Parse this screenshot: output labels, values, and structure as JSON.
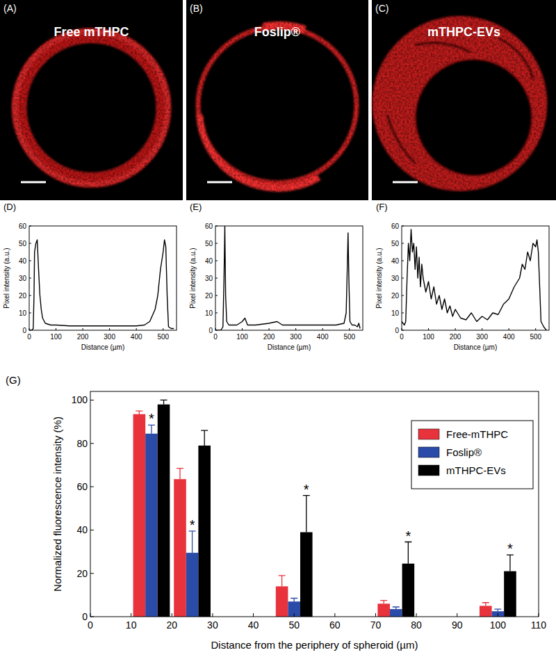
{
  "images": [
    {
      "label": "(A)",
      "title": "Free mTHPC"
    },
    {
      "label": "(B)",
      "title": "Foslip®"
    },
    {
      "label": "(C)",
      "title": "mTHPC-EVs"
    }
  ],
  "chart_data": [
    {
      "type": "line",
      "title": "(D)",
      "color": "#000000",
      "x": [
        0,
        10,
        15,
        18,
        20,
        25,
        30,
        35,
        40,
        45,
        50,
        60,
        80,
        100,
        150,
        200,
        250,
        300,
        350,
        400,
        430,
        450,
        470,
        480,
        490,
        500,
        505,
        510,
        515,
        520,
        530,
        540
      ],
      "values": [
        0,
        0,
        1,
        20,
        45,
        50,
        52,
        35,
        20,
        12,
        7,
        4,
        3,
        3,
        2.5,
        2.5,
        2.5,
        2.5,
        2.5,
        2.5,
        3,
        5,
        12,
        20,
        35,
        45,
        52,
        48,
        20,
        2,
        1,
        1
      ],
      "xlim": [
        0,
        550
      ],
      "xticks": [
        0,
        100,
        200,
        300,
        400,
        500
      ],
      "ylim": [
        0,
        60
      ],
      "yticks": [
        0,
        10,
        20,
        30,
        40,
        50,
        60
      ],
      "xlabel": "Distance (µm)",
      "ylabel": "Pixel intensity (a.u.)"
    },
    {
      "type": "line",
      "title": "(E)",
      "color": "#000000",
      "x": [
        0,
        20,
        28,
        32,
        35,
        38,
        42,
        50,
        80,
        100,
        110,
        120,
        150,
        200,
        230,
        250,
        300,
        350,
        400,
        450,
        480,
        488,
        492,
        495,
        498,
        502,
        510,
        520,
        530,
        535,
        540
      ],
      "values": [
        0,
        0,
        2,
        30,
        60,
        20,
        5,
        3,
        3,
        5,
        7,
        3,
        3,
        4,
        5,
        3,
        3,
        3,
        3,
        3,
        4,
        10,
        35,
        56,
        30,
        5,
        3,
        3,
        2,
        4,
        1
      ],
      "xlim": [
        0,
        550
      ],
      "xticks": [
        0,
        100,
        200,
        300,
        400,
        500
      ],
      "ylim": [
        0,
        60
      ],
      "yticks": [
        0,
        10,
        20,
        30,
        40,
        50,
        60
      ],
      "xlabel": "Distance (µm)",
      "ylabel": "Pixel intensity (a.u.)"
    },
    {
      "type": "line",
      "title": "(F)",
      "color": "#000000",
      "x": [
        0,
        10,
        15,
        20,
        25,
        30,
        35,
        40,
        45,
        50,
        55,
        60,
        65,
        70,
        75,
        80,
        90,
        100,
        110,
        120,
        130,
        140,
        150,
        160,
        170,
        180,
        190,
        200,
        220,
        240,
        260,
        280,
        300,
        320,
        340,
        360,
        380,
        400,
        420,
        440,
        450,
        460,
        470,
        480,
        490,
        500,
        505,
        510,
        515,
        520,
        530,
        540
      ],
      "values": [
        5,
        3,
        5,
        30,
        50,
        40,
        58,
        45,
        50,
        35,
        48,
        30,
        42,
        25,
        38,
        30,
        22,
        28,
        18,
        25,
        15,
        20,
        12,
        18,
        10,
        14,
        8,
        12,
        7,
        6,
        10,
        5,
        8,
        6,
        10,
        9,
        15,
        18,
        25,
        30,
        38,
        35,
        45,
        40,
        50,
        48,
        52,
        45,
        25,
        5,
        2,
        0
      ],
      "xlim": [
        0,
        550
      ],
      "xticks": [
        0,
        100,
        200,
        300,
        400,
        500
      ],
      "ylim": [
        0,
        60
      ],
      "yticks": [
        0,
        10,
        20,
        30,
        40,
        50,
        60
      ],
      "xlabel": "Distance (µm)",
      "ylabel": "Pixel intensity (a.u.)"
    },
    {
      "type": "bar",
      "title": "(G)",
      "x": [
        15,
        25,
        50,
        75,
        100
      ],
      "series": [
        {
          "name": "Free-mTHPC",
          "color": "#e8323c",
          "values": [
            93.5,
            63.5,
            14,
            6,
            5
          ],
          "errors": [
            1.5,
            5,
            5,
            1.5,
            1.5
          ],
          "annotations": [
            null,
            null,
            null,
            null,
            null
          ]
        },
        {
          "name": "Foslip®",
          "color": "#2b4ba8",
          "values": [
            84.5,
            29.5,
            7,
            3.5,
            2.5
          ],
          "errors": [
            4,
            10,
            1.5,
            1,
            1
          ],
          "annotations": [
            "*",
            "*",
            null,
            null,
            null
          ]
        },
        {
          "name": "mTHPC-EVs",
          "color": "#000000",
          "values": [
            98,
            79,
            39,
            24.5,
            21
          ],
          "errors": [
            2,
            7,
            17,
            10,
            7.5
          ],
          "annotations": [
            null,
            null,
            "*",
            "*",
            "*"
          ]
        }
      ],
      "xlim": [
        0,
        110
      ],
      "xticks": [
        0,
        10,
        20,
        30,
        40,
        50,
        60,
        70,
        80,
        90,
        100,
        110
      ],
      "ylim": [
        0,
        104
      ],
      "yticks": [
        0,
        20,
        40,
        60,
        80,
        100
      ],
      "xlabel": "Distance from the periphery of spheroid (µm)",
      "ylabel": "Normalized fluorescence intensity (%)",
      "legend": "upper right"
    }
  ]
}
